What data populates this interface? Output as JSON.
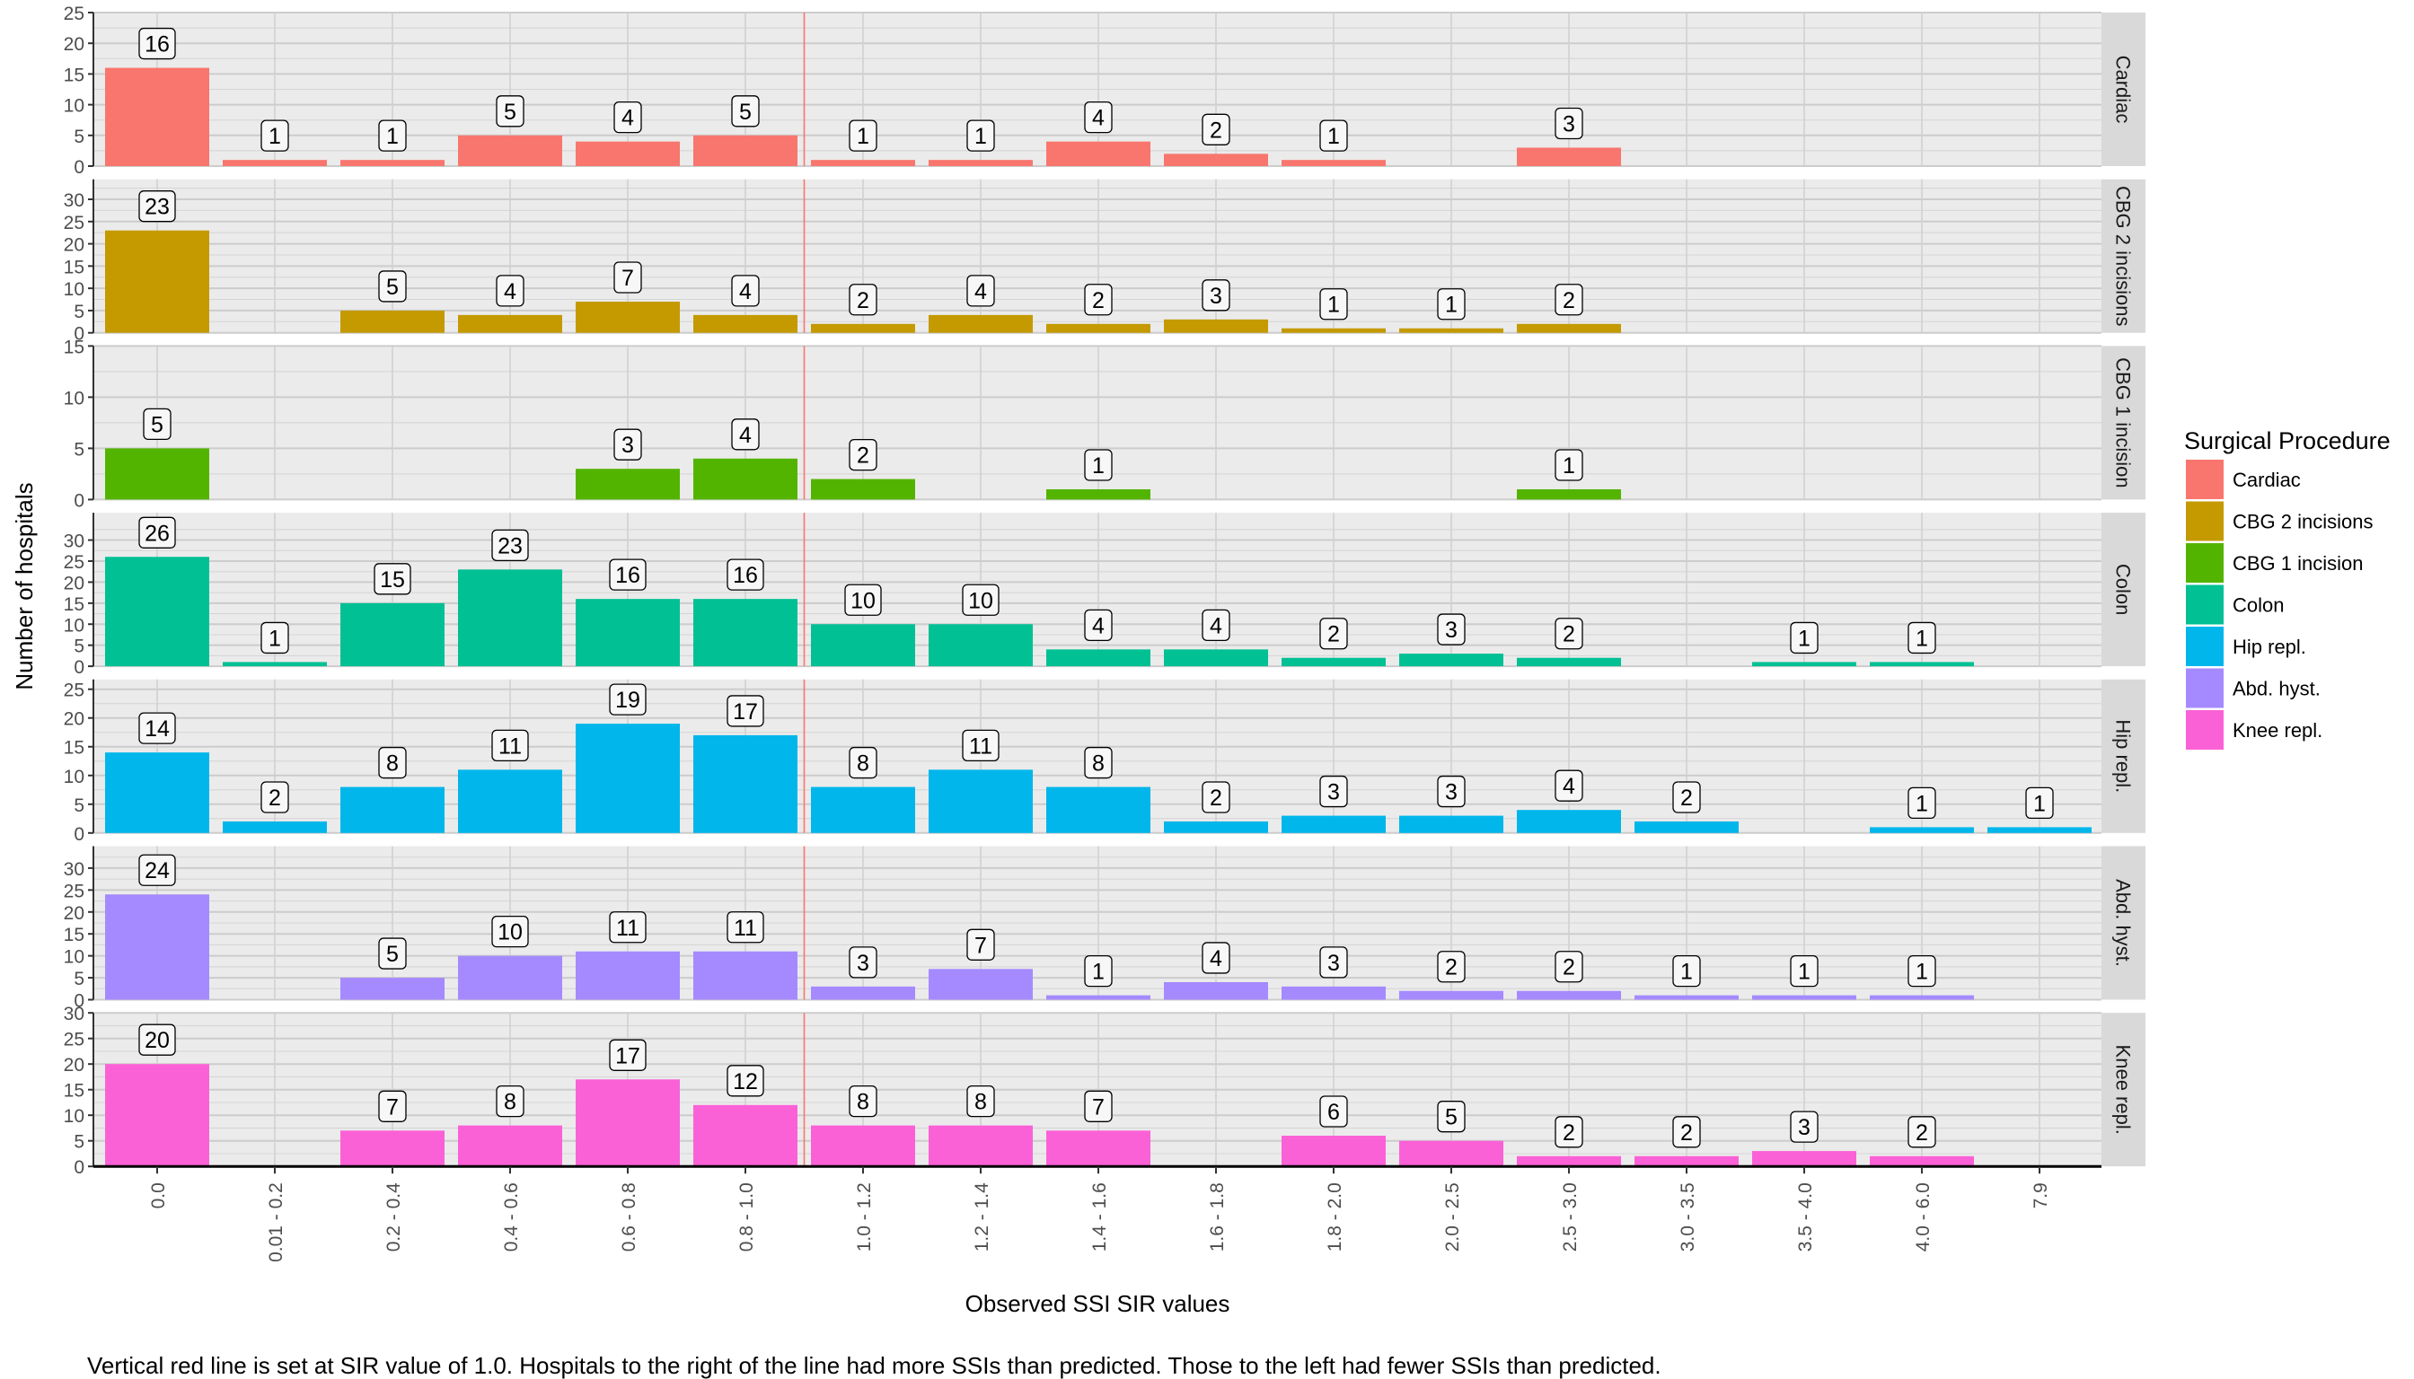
{
  "chart_data": {
    "type": "bar",
    "layout": "faceted-rows",
    "categories": [
      "0.0",
      "0.01 - 0.2",
      "0.2 - 0.4",
      "0.4 - 0.6",
      "0.6 - 0.8",
      "0.8 - 1.0",
      "1.0 - 1.2",
      "1.2 - 1.4",
      "1.4 - 1.6",
      "1.6 - 1.8",
      "1.8 - 2.0",
      "2.0 - 2.5",
      "2.5 - 3.0",
      "3.0 - 3.5",
      "3.5 - 4.0",
      "4.0 - 6.0",
      "7.9"
    ],
    "xlabel": "Observed SSI SIR values",
    "ylabel": "Number of hospitals",
    "reference_line": {
      "after_category": "0.8 - 1.0",
      "sir_value": 1.0,
      "color": "#F8766D"
    },
    "legend": {
      "title": "Surgical Procedure",
      "position": "right"
    },
    "grid": true,
    "series": [
      {
        "name": "Cardiac",
        "color": "#F8766D",
        "ylim": [
          0,
          25
        ],
        "yticks": [
          0,
          5,
          10,
          15,
          20,
          25
        ],
        "values": [
          16,
          1,
          1,
          5,
          4,
          5,
          1,
          1,
          4,
          2,
          1,
          null,
          3,
          null,
          null,
          null,
          null
        ]
      },
      {
        "name": "CBG 2 incisions",
        "color": "#C49A00",
        "ylim": [
          0,
          34.5
        ],
        "yticks": [
          0,
          5,
          10,
          15,
          20,
          25,
          30
        ],
        "values": [
          23,
          null,
          5,
          4,
          7,
          4,
          2,
          4,
          2,
          3,
          1,
          1,
          2,
          null,
          null,
          null,
          null
        ]
      },
      {
        "name": "CBG 1 incision",
        "color": "#53B400",
        "ylim": [
          0,
          15
        ],
        "yticks": [
          0,
          5,
          10,
          15
        ],
        "values": [
          5,
          null,
          null,
          null,
          3,
          4,
          2,
          null,
          1,
          null,
          null,
          null,
          1,
          null,
          null,
          null,
          null
        ]
      },
      {
        "name": "Colon",
        "color": "#00C094",
        "ylim": [
          0,
          36.5
        ],
        "yticks": [
          0,
          5,
          10,
          15,
          20,
          25,
          30
        ],
        "values": [
          26,
          1,
          15,
          23,
          16,
          16,
          10,
          10,
          4,
          4,
          2,
          3,
          2,
          null,
          1,
          1,
          null
        ]
      },
      {
        "name": "Hip repl.",
        "color": "#00B6EB",
        "ylim": [
          0,
          26.7
        ],
        "yticks": [
          0,
          5,
          10,
          15,
          20,
          25
        ],
        "values": [
          14,
          2,
          8,
          11,
          19,
          17,
          8,
          11,
          8,
          2,
          3,
          3,
          4,
          2,
          null,
          1,
          1
        ]
      },
      {
        "name": "Abd. hyst.",
        "color": "#A58AFF",
        "ylim": [
          0,
          35
        ],
        "yticks": [
          0,
          5,
          10,
          15,
          20,
          25,
          30
        ],
        "values": [
          24,
          null,
          5,
          10,
          11,
          11,
          3,
          7,
          1,
          4,
          3,
          2,
          2,
          1,
          1,
          1,
          null
        ]
      },
      {
        "name": "Knee repl.",
        "color": "#FB61D7",
        "ylim": [
          0,
          30
        ],
        "yticks": [
          0,
          5,
          10,
          15,
          20,
          25,
          30
        ],
        "values": [
          20,
          null,
          7,
          8,
          17,
          12,
          8,
          8,
          7,
          null,
          6,
          5,
          2,
          2,
          3,
          2,
          null
        ]
      }
    ],
    "caption": "Vertical red line is set at SIR value of 1.0.  Hospitals to the right of the line had more SSIs than predicted.  Those to the left had fewer SSIs than predicted."
  }
}
